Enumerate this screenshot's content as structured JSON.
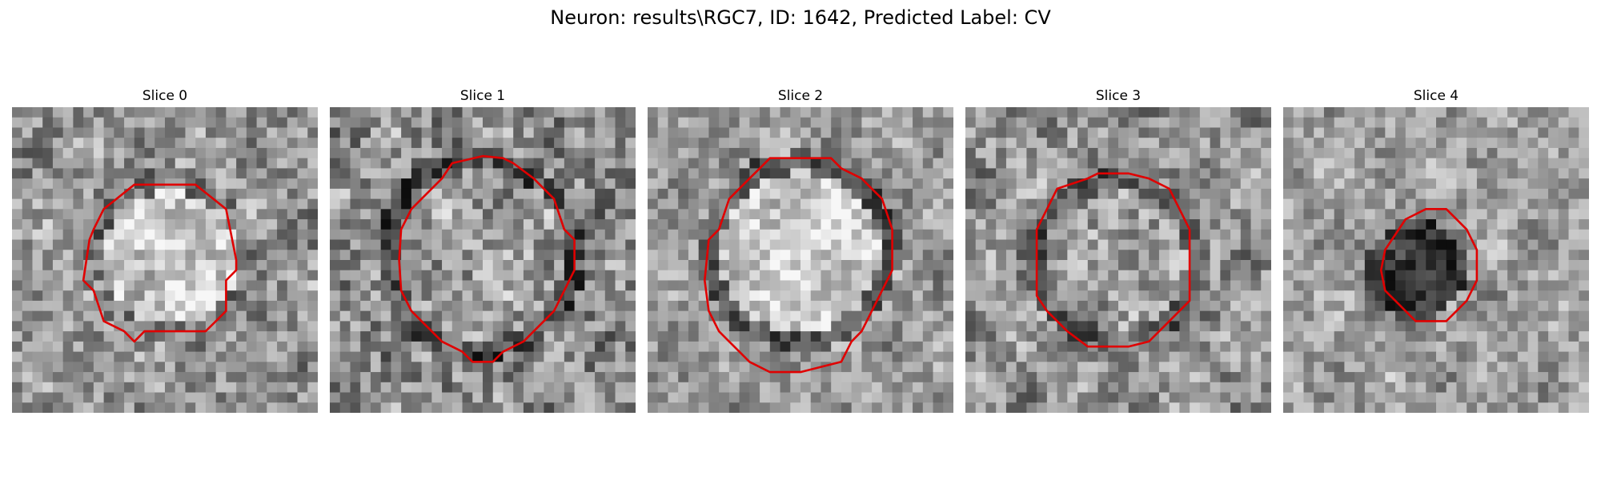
{
  "figure": {
    "title": "Neuron: results\\RGC7, ID: 1642, Predicted Label: CV"
  },
  "panels": [
    {
      "title": "Slice 0",
      "contour_color": "#e00000",
      "colormap": "gray"
    },
    {
      "title": "Slice 1",
      "contour_color": "#e00000",
      "colormap": "gray"
    },
    {
      "title": "Slice 2",
      "contour_color": "#e00000",
      "colormap": "gray"
    },
    {
      "title": "Slice 3",
      "contour_color": "#e00000",
      "colormap": "gray"
    },
    {
      "title": "Slice 4",
      "contour_color": "#e00000",
      "colormap": "gray"
    }
  ]
}
